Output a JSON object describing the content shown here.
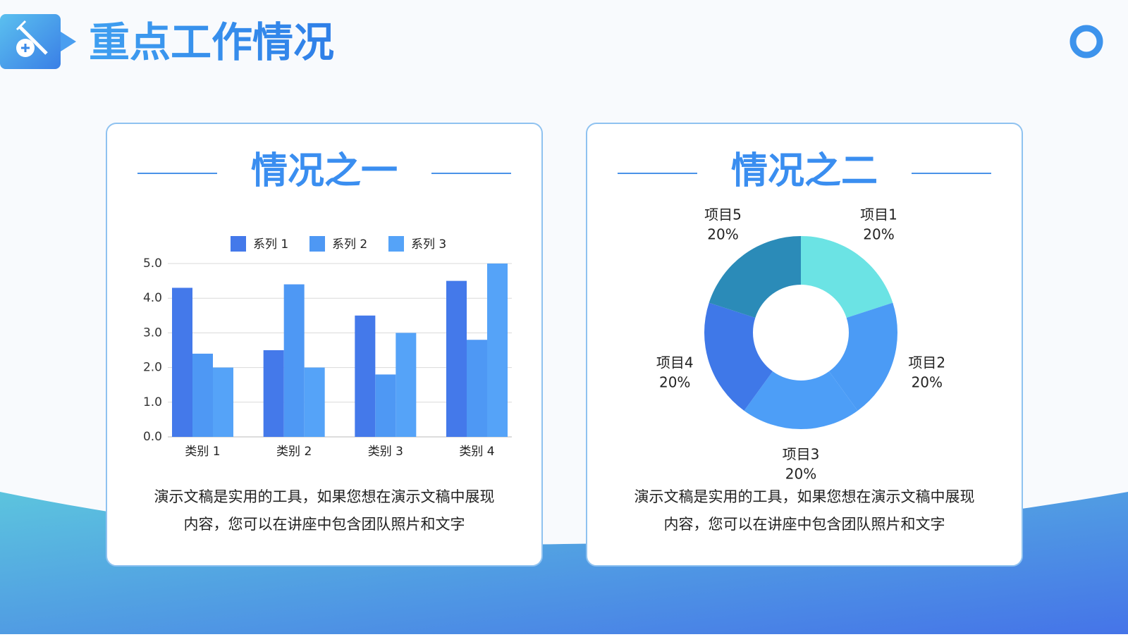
{
  "header": {
    "title": "重点工作情况"
  },
  "chart_data": [
    {
      "type": "bar",
      "title": "情况之一",
      "categories": [
        "类别 1",
        "类别 2",
        "类别 3",
        "类别 4"
      ],
      "series": [
        {
          "name": "系列 1",
          "color": "#4479ea",
          "values": [
            4.3,
            2.5,
            3.5,
            4.5
          ]
        },
        {
          "name": "系列 2",
          "color": "#4e98f4",
          "values": [
            2.4,
            4.4,
            1.8,
            2.8
          ]
        },
        {
          "name": "系列 3",
          "color": "#55a3f8",
          "values": [
            2.0,
            2.0,
            3.0,
            5.0
          ]
        }
      ],
      "ylim": [
        0,
        5
      ],
      "yticks": [
        {
          "value": 0,
          "label": "0.0"
        },
        {
          "value": 1,
          "label": "1.0"
        },
        {
          "value": 2,
          "label": "2.0"
        },
        {
          "value": 3,
          "label": "3.0"
        },
        {
          "value": 4,
          "label": "4.0"
        },
        {
          "value": 5,
          "label": "5.0"
        }
      ],
      "grid": true,
      "legend": "top",
      "description": [
        "演示文稿是实用的工具，如果您想在演示文稿中展现",
        "内容，您可以在讲座中包含团队照片和文字"
      ]
    },
    {
      "type": "donut",
      "title": "情况之二",
      "categories": [
        "项目1",
        "项目2",
        "项目3",
        "项目4",
        "项目5"
      ],
      "values": [
        20,
        20,
        20,
        20,
        20
      ],
      "value_labels": [
        "20%",
        "20%",
        "20%",
        "20%",
        "20%"
      ],
      "colors": [
        "#6be3e4",
        "#4b9bf5",
        "#4d9ef7",
        "#3f78e8",
        "#2b8bb8"
      ],
      "description": [
        "演示文稿是实用的工具，如果您想在演示文稿中展现",
        "内容，您可以在讲座中包含团队照片和文字"
      ]
    }
  ]
}
